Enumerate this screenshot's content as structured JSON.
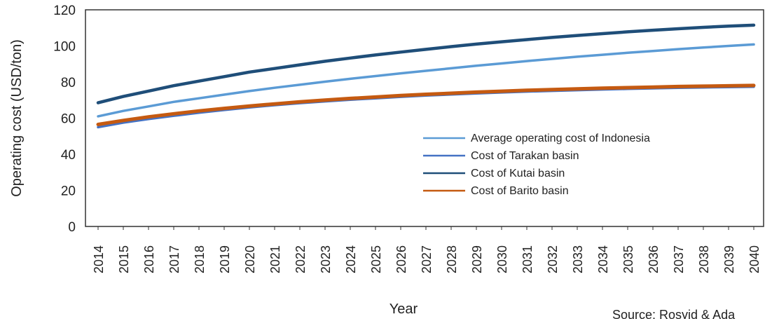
{
  "chart_data": {
    "type": "line",
    "xlabel": "Year",
    "ylabel": "Operating cost (USD/ton)",
    "ylim": [
      0,
      120
    ],
    "yticks": [
      0,
      20,
      40,
      60,
      80,
      100,
      120
    ],
    "grid": false,
    "legend_position": "center-right",
    "x": [
      "2014",
      "2015",
      "2016",
      "2017",
      "2018",
      "2019",
      "2020",
      "2021",
      "2022",
      "2023",
      "2024",
      "2025",
      "2026",
      "2027",
      "2028",
      "2029",
      "2030",
      "2031",
      "2032",
      "2033",
      "2034",
      "2035",
      "2036",
      "2037",
      "2038",
      "2039",
      "2040"
    ],
    "series": [
      {
        "name": "Average operating cost of Indonesia",
        "color": "#5b9bd5",
        "values": [
          61,
          64,
          66.5,
          69,
          71,
          73,
          75,
          76.8,
          78.5,
          80.2,
          81.8,
          83.3,
          84.8,
          86.2,
          87.6,
          89,
          90.3,
          91.6,
          92.8,
          94,
          95.1,
          96.2,
          97.2,
          98.2,
          99.1,
          100,
          100.8
        ]
      },
      {
        "name": "Cost of Tarakan basin",
        "color": "#4472c4",
        "values": [
          55,
          57.5,
          59.5,
          61.3,
          63,
          64.5,
          65.9,
          67.2,
          68.3,
          69.3,
          70.2,
          71,
          71.8,
          72.5,
          73.1,
          73.7,
          74.2,
          74.7,
          75.1,
          75.5,
          75.9,
          76.2,
          76.5,
          76.8,
          77,
          77.2,
          77.4
        ]
      },
      {
        "name": "Cost of Kutai basin",
        "color": "#1f4e79",
        "values": [
          68.5,
          72,
          75,
          78,
          80.5,
          83,
          85.5,
          87.5,
          89.5,
          91.5,
          93.3,
          95,
          96.6,
          98.1,
          99.6,
          101,
          102.3,
          103.5,
          104.7,
          105.8,
          106.8,
          107.8,
          108.7,
          109.5,
          110.3,
          111,
          111.5
        ]
      },
      {
        "name": "Cost of Barito basin",
        "color": "#c55a11",
        "values": [
          56.5,
          58.7,
          60.7,
          62.4,
          64,
          65.4,
          66.7,
          67.9,
          69,
          70,
          70.9,
          71.7,
          72.5,
          73.2,
          73.8,
          74.4,
          74.9,
          75.4,
          75.8,
          76.2,
          76.6,
          76.9,
          77.2,
          77.5,
          77.7,
          77.9,
          78.1
        ]
      }
    ]
  },
  "source_text": "Source: Rosyid & Ada"
}
